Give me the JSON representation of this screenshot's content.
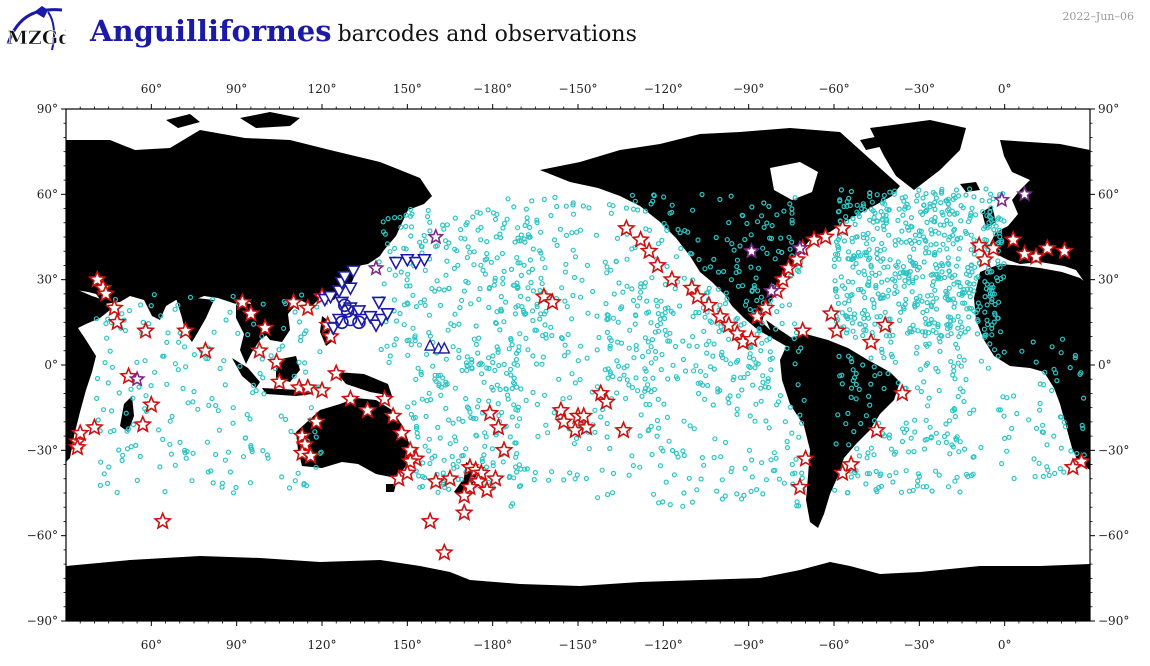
{
  "header": {
    "logo_text": "MZGdb",
    "title_bold": "Anguilliformes",
    "title_rest": "barcodes and observations",
    "date": "2022–Jun–06"
  },
  "axes": {
    "lon_top": [
      "60°",
      "90°",
      "120°",
      "150°",
      "−180°",
      "−150°",
      "−120°",
      "−90°",
      "−60°",
      "−30°",
      "0°"
    ],
    "lon_bottom": [
      "60°",
      "90°",
      "120°",
      "150°",
      "−180°",
      "−150°",
      "−120°",
      "−90°",
      "−60°",
      "−30°",
      "0°"
    ],
    "lat_left": [
      "90°",
      "60°",
      "30°",
      "0°",
      "−30°",
      "−60°",
      "−90°"
    ],
    "lat_right": [
      "90°",
      "60°",
      "30°",
      "0°",
      "−30°",
      "−60°",
      "−90°"
    ]
  },
  "colors": {
    "land": "#000000",
    "ocean": "#ffffff",
    "observations": "#2ec4c4",
    "barcodes_star": "#cc1111",
    "barcodes_blue": "#1a1aa6",
    "title_blue": "#1a1aa6"
  },
  "map_data": {
    "central_meridian": 180,
    "lon_range": [
      30,
      390
    ],
    "lat_range": [
      -90,
      90
    ],
    "red_stars": [
      [
        34,
        -27
      ],
      [
        34,
        -29
      ],
      [
        35,
        -24
      ],
      [
        40,
        -22
      ],
      [
        41,
        30
      ],
      [
        43,
        27
      ],
      [
        44,
        25
      ],
      [
        47,
        20
      ],
      [
        48,
        15
      ],
      [
        52,
        -4
      ],
      [
        57,
        -21
      ],
      [
        58,
        12
      ],
      [
        60,
        -14
      ],
      [
        72,
        12
      ],
      [
        79,
        5
      ],
      [
        92,
        22
      ],
      [
        95,
        18
      ],
      [
        100,
        13
      ],
      [
        98,
        5
      ],
      [
        104,
        1
      ],
      [
        105,
        -6
      ],
      [
        112,
        -8
      ],
      [
        115,
        -8
      ],
      [
        120,
        -9
      ],
      [
        113,
        -25
      ],
      [
        114,
        -28
      ],
      [
        113,
        -31
      ],
      [
        116,
        -32
      ],
      [
        118,
        -20
      ],
      [
        115,
        20
      ],
      [
        110,
        22
      ],
      [
        120,
        24
      ],
      [
        122,
        14
      ],
      [
        123,
        10
      ],
      [
        125,
        -3
      ],
      [
        130,
        -12
      ],
      [
        136,
        -16
      ],
      [
        142,
        -12
      ],
      [
        145,
        -18
      ],
      [
        148,
        -24
      ],
      [
        151,
        -30
      ],
      [
        153,
        -33
      ],
      [
        151,
        -34
      ],
      [
        147,
        -40
      ],
      [
        150,
        -38
      ],
      [
        160,
        -41
      ],
      [
        165,
        -40
      ],
      [
        172,
        -36
      ],
      [
        174,
        -37
      ],
      [
        176,
        -38
      ],
      [
        175,
        -41
      ],
      [
        172,
        -43
      ],
      [
        170,
        -46
      ],
      [
        178,
        -44
      ],
      [
        179,
        -17
      ],
      [
        182,
        -22
      ],
      [
        198,
        24
      ],
      [
        201,
        22
      ],
      [
        204,
        -16
      ],
      [
        205,
        -20
      ],
      [
        210,
        -18
      ],
      [
        209,
        -23
      ],
      [
        213,
        -22
      ],
      [
        212,
        -18
      ],
      [
        218,
        -10
      ],
      [
        220,
        -13
      ],
      [
        226,
        -23
      ],
      [
        227,
        48
      ],
      [
        232,
        44
      ],
      [
        235,
        40
      ],
      [
        238,
        35
      ],
      [
        243,
        30
      ],
      [
        250,
        27
      ],
      [
        252,
        24
      ],
      [
        256,
        21
      ],
      [
        260,
        17
      ],
      [
        263,
        14
      ],
      [
        266,
        11
      ],
      [
        268,
        8
      ],
      [
        271,
        9
      ],
      [
        273,
        17
      ],
      [
        276,
        20
      ],
      [
        280,
        26
      ],
      [
        282,
        30
      ],
      [
        284,
        34
      ],
      [
        287,
        37
      ],
      [
        289,
        41
      ],
      [
        293,
        44
      ],
      [
        297,
        45
      ],
      [
        303,
        48
      ],
      [
        299,
        18
      ],
      [
        289,
        12
      ],
      [
        301,
        12
      ],
      [
        313,
        8
      ],
      [
        318,
        14
      ],
      [
        324,
        -10
      ],
      [
        315,
        -23
      ],
      [
        303,
        -38
      ],
      [
        306,
        -35
      ],
      [
        290,
        -33
      ],
      [
        288,
        -43
      ],
      [
        351,
        42
      ],
      [
        353,
        37
      ],
      [
        356,
        41
      ],
      [
        363,
        44
      ],
      [
        367,
        39
      ],
      [
        371,
        38
      ],
      [
        375,
        41
      ],
      [
        381,
        40
      ],
      [
        387,
        -34
      ],
      [
        384,
        -36
      ],
      [
        64,
        -55
      ],
      [
        158,
        -55
      ],
      [
        163,
        -66
      ],
      [
        170,
        -52
      ],
      [
        181,
        -40
      ],
      [
        184,
        -30
      ]
    ],
    "blue_down_triangles": [
      [
        121,
        23
      ],
      [
        123,
        24
      ],
      [
        126,
        26
      ],
      [
        127,
        29
      ],
      [
        128,
        31
      ],
      [
        131,
        33
      ],
      [
        127,
        22
      ],
      [
        130,
        20
      ],
      [
        133,
        19
      ],
      [
        134,
        16
      ],
      [
        137,
        17
      ],
      [
        139,
        14
      ],
      [
        141,
        16
      ],
      [
        143,
        18
      ],
      [
        140,
        22
      ],
      [
        146,
        36
      ],
      [
        150,
        37
      ],
      [
        153,
        36
      ],
      [
        156,
        37
      ],
      [
        130,
        27
      ],
      [
        124,
        13
      ],
      [
        126,
        16
      ]
    ],
    "blue_up_triangles": [
      [
        158,
        7
      ],
      [
        161,
        6
      ],
      [
        163,
        6
      ]
    ],
    "blue_circles": [
      [
        127,
        15
      ],
      [
        128,
        21
      ],
      [
        129,
        19
      ],
      [
        130,
        16
      ],
      [
        133,
        15
      ]
    ],
    "purple_stars": [
      [
        55,
        -5
      ],
      [
        139,
        34
      ],
      [
        160,
        45
      ],
      [
        271,
        40
      ],
      [
        278,
        26
      ],
      [
        288,
        41
      ],
      [
        359,
        58
      ],
      [
        367,
        60
      ]
    ]
  }
}
